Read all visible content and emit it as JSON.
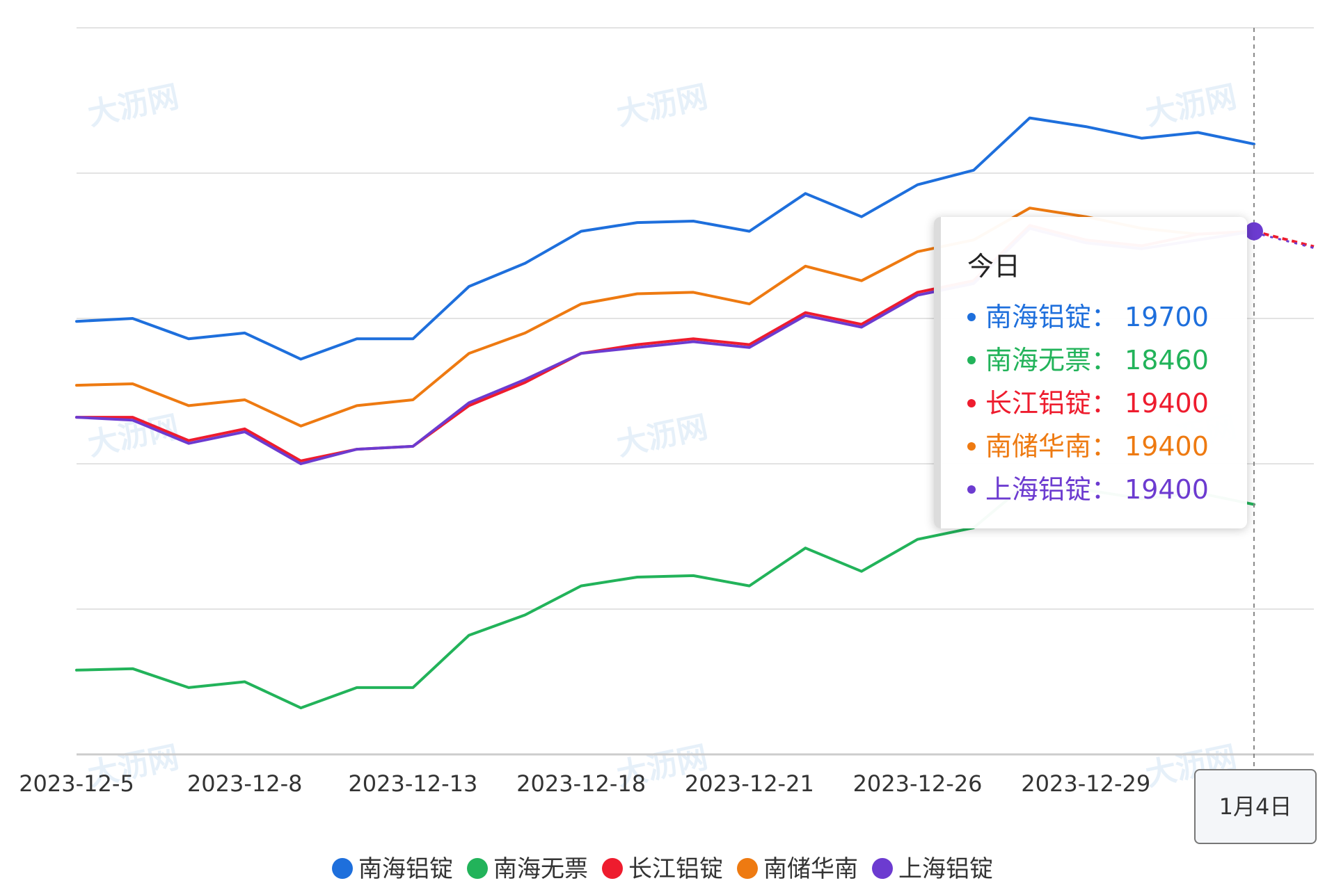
{
  "chart_data": {
    "type": "line",
    "title": "",
    "xlabel": "",
    "ylabel": "",
    "x": [
      "2023-12-5",
      "2023-12-6",
      "2023-12-7",
      "2023-12-8",
      "2023-12-11",
      "2023-12-12",
      "2023-12-13",
      "2023-12-14",
      "2023-12-15",
      "2023-12-18",
      "2023-12-19",
      "2023-12-20",
      "2023-12-21",
      "2023-12-22",
      "2023-12-25",
      "2023-12-26",
      "2023-12-27",
      "2023-12-28",
      "2023-12-29",
      "2024-1-2",
      "2024-1-3",
      "今日"
    ],
    "x_tick_labels": [
      "2023-12-5",
      "2023-12-8",
      "2023-12-13",
      "2023-12-18",
      "2023-12-21",
      "2023-12-26",
      "2023-12-29"
    ],
    "ylim": [
      17600,
      20100
    ],
    "y_gridlines": [
      17600,
      18100,
      18600,
      19100,
      19600,
      20100
    ],
    "y_tick_labels_visible": false,
    "grid": true,
    "legend_position": "bottom",
    "series": [
      {
        "name": "南海铝锭",
        "color": "#1e6fdc",
        "values": [
          19090,
          19100,
          19030,
          19050,
          18960,
          19030,
          19030,
          19210,
          19290,
          19400,
          19430,
          19435,
          19400,
          19530,
          19450,
          19560,
          19610,
          19790,
          19760,
          19720,
          19740,
          19700
        ]
      },
      {
        "name": "南海无票",
        "color": "#22b35a",
        "values": [
          17890,
          17895,
          17830,
          17850,
          17760,
          17830,
          17830,
          18010,
          18080,
          18180,
          18210,
          18215,
          18180,
          18310,
          18230,
          18340,
          18380,
          18540,
          18510,
          18480,
          18500,
          18460
        ]
      },
      {
        "name": "长江铝锭",
        "color": "#ee1c2e",
        "values": [
          18760,
          18760,
          18680,
          18720,
          18610,
          18650,
          18660,
          18800,
          18880,
          18980,
          19010,
          19030,
          19010,
          19120,
          19080,
          19190,
          19230,
          19420,
          19370,
          19350,
          19390,
          19400
        ]
      },
      {
        "name": "南储华南",
        "color": "#ee7a11",
        "values": [
          18870,
          18875,
          18800,
          18820,
          18730,
          18800,
          18820,
          18980,
          19050,
          19150,
          19185,
          19190,
          19150,
          19280,
          19230,
          19330,
          19370,
          19480,
          19450,
          19410,
          19390,
          19400
        ]
      },
      {
        "name": "上海铝锭",
        "color": "#6c3bd0",
        "values": [
          18760,
          18750,
          18670,
          18710,
          18600,
          18650,
          18660,
          18810,
          18890,
          18980,
          19000,
          19020,
          19000,
          19110,
          19070,
          19180,
          19220,
          19410,
          19360,
          19340,
          19370,
          19400
        ]
      }
    ]
  },
  "tooltip": {
    "title": "今日",
    "rows": [
      {
        "label": "南海铝锭：",
        "value": "19700",
        "color": "#1e6fdc"
      },
      {
        "label": "南海无票：",
        "value": "18460",
        "color": "#22b35a"
      },
      {
        "label": "长江铝锭：",
        "value": "19400",
        "color": "#ee1c2e"
      },
      {
        "label": "南储华南：",
        "value": "19400",
        "color": "#ee7a11"
      },
      {
        "label": "上海铝锭：",
        "value": "19400",
        "color": "#6c3bd0"
      }
    ]
  },
  "axis_pointer_label": "1月4日",
  "watermark_text": "大沥网"
}
